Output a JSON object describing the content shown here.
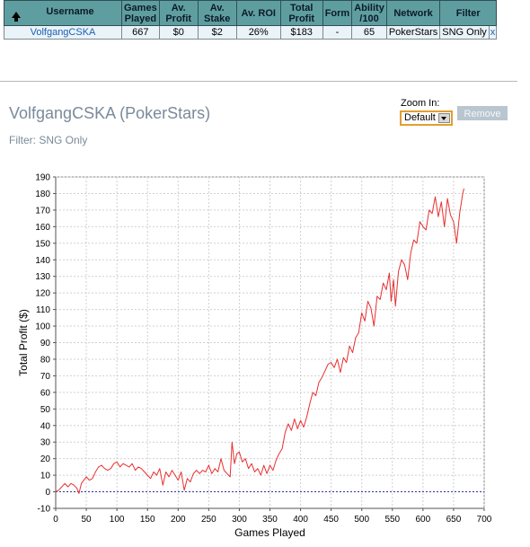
{
  "table": {
    "headers": [
      "Username",
      "Games Played",
      "Av. Profit",
      "Av. Stake",
      "Av. ROI",
      "Total Profit",
      "Form",
      "Ability /100",
      "Network",
      "Filter"
    ],
    "header_lines": [
      [
        "Username"
      ],
      [
        "Games",
        "Played"
      ],
      [
        "Av.",
        "Profit"
      ],
      [
        "Av.",
        "Stake"
      ],
      [
        "Av. ROI"
      ],
      [
        "Total",
        "Profit"
      ],
      [
        "Form"
      ],
      [
        "Ability",
        "/100"
      ],
      [
        "Network"
      ],
      [
        "Filter"
      ]
    ],
    "row": {
      "username": "VolfgangCSKA",
      "games_played": "667",
      "av_profit": "$0",
      "av_stake": "$2",
      "av_roi": "26%",
      "total_profit": "$183",
      "form": "-",
      "ability": "65",
      "network": "PokerStars",
      "filter": "SNG Only",
      "remove": "x"
    }
  },
  "graph": {
    "title": "VolfgangCSKA (PokerStars)",
    "filter_text": "Filter: SNG Only",
    "zoom_label": "Zoom In:",
    "zoom_value": "Default",
    "remove_label": "Remove"
  },
  "colors": {
    "header_bg": "#5f9ea0",
    "row_bg": "#eaf3f8",
    "link": "#1a5fb4",
    "line": "#e83030",
    "zero_line": "#3030a0"
  },
  "chart_data": {
    "type": "line",
    "xlabel": "Games Played",
    "ylabel": "Total Profit ($)",
    "xlim": [
      0,
      700
    ],
    "ylim": [
      -10,
      190
    ],
    "xticks": [
      0,
      50,
      100,
      150,
      200,
      250,
      300,
      350,
      400,
      450,
      500,
      550,
      600,
      650,
      700
    ],
    "yticks": [
      -10,
      0,
      10,
      20,
      30,
      40,
      50,
      60,
      70,
      80,
      90,
      100,
      110,
      120,
      130,
      140,
      150,
      160,
      170,
      180,
      190
    ],
    "grid": true,
    "series": [
      {
        "x": [
          0,
          5,
          10,
          15,
          20,
          25,
          30,
          35,
          38,
          42,
          50,
          55,
          60,
          65,
          70,
          75,
          80,
          85,
          90,
          95,
          100,
          105,
          110,
          115,
          120,
          125,
          130,
          135,
          140,
          145,
          150,
          155,
          160,
          165,
          170,
          175,
          180,
          185,
          190,
          195,
          200,
          205,
          210,
          215,
          220,
          225,
          230,
          235,
          240,
          245,
          250,
          255,
          260,
          265,
          270,
          275,
          280,
          285,
          288,
          292,
          296,
          300,
          305,
          310,
          315,
          320,
          325,
          330,
          335,
          340,
          345,
          350,
          355,
          360,
          365,
          370,
          375,
          380,
          385,
          390,
          395,
          400,
          405,
          410,
          415,
          420,
          425,
          430,
          435,
          440,
          445,
          450,
          455,
          460,
          465,
          470,
          475,
          480,
          485,
          490,
          495,
          500,
          505,
          510,
          515,
          520,
          525,
          530,
          535,
          540,
          545,
          548,
          552,
          555,
          560,
          565,
          570,
          575,
          580,
          585,
          590,
          595,
          600,
          605,
          610,
          615,
          620,
          625,
          630,
          635,
          640,
          645,
          650,
          655,
          660,
          665,
          667
        ],
        "y": [
          0,
          1,
          3,
          5,
          3,
          5,
          4,
          2,
          -1,
          5,
          9,
          7,
          8,
          12,
          15,
          16,
          14,
          13,
          14,
          17,
          18,
          15,
          17,
          16,
          15,
          17,
          13,
          15,
          14,
          12,
          10,
          8,
          12,
          10,
          14,
          4,
          12,
          9,
          13,
          10,
          7,
          12,
          1,
          8,
          6,
          11,
          13,
          11,
          13,
          12,
          16,
          11,
          14,
          12,
          20,
          13,
          11,
          9,
          30,
          17,
          23,
          24,
          18,
          20,
          14,
          17,
          12,
          14,
          10,
          16,
          11,
          16,
          13,
          19,
          23,
          26,
          36,
          41,
          37,
          44,
          38,
          43,
          39,
          45,
          53,
          60,
          58,
          66,
          69,
          73,
          77,
          78,
          75,
          80,
          72,
          81,
          78,
          88,
          84,
          93,
          96,
          108,
          103,
          115,
          111,
          100,
          118,
          116,
          126,
          122,
          132,
          115,
          128,
          112,
          133,
          140,
          137,
          128,
          144,
          152,
          150,
          163,
          160,
          158,
          170,
          168,
          178,
          166,
          175,
          160,
          177,
          167,
          163,
          150,
          168,
          180,
          183
        ]
      }
    ]
  }
}
